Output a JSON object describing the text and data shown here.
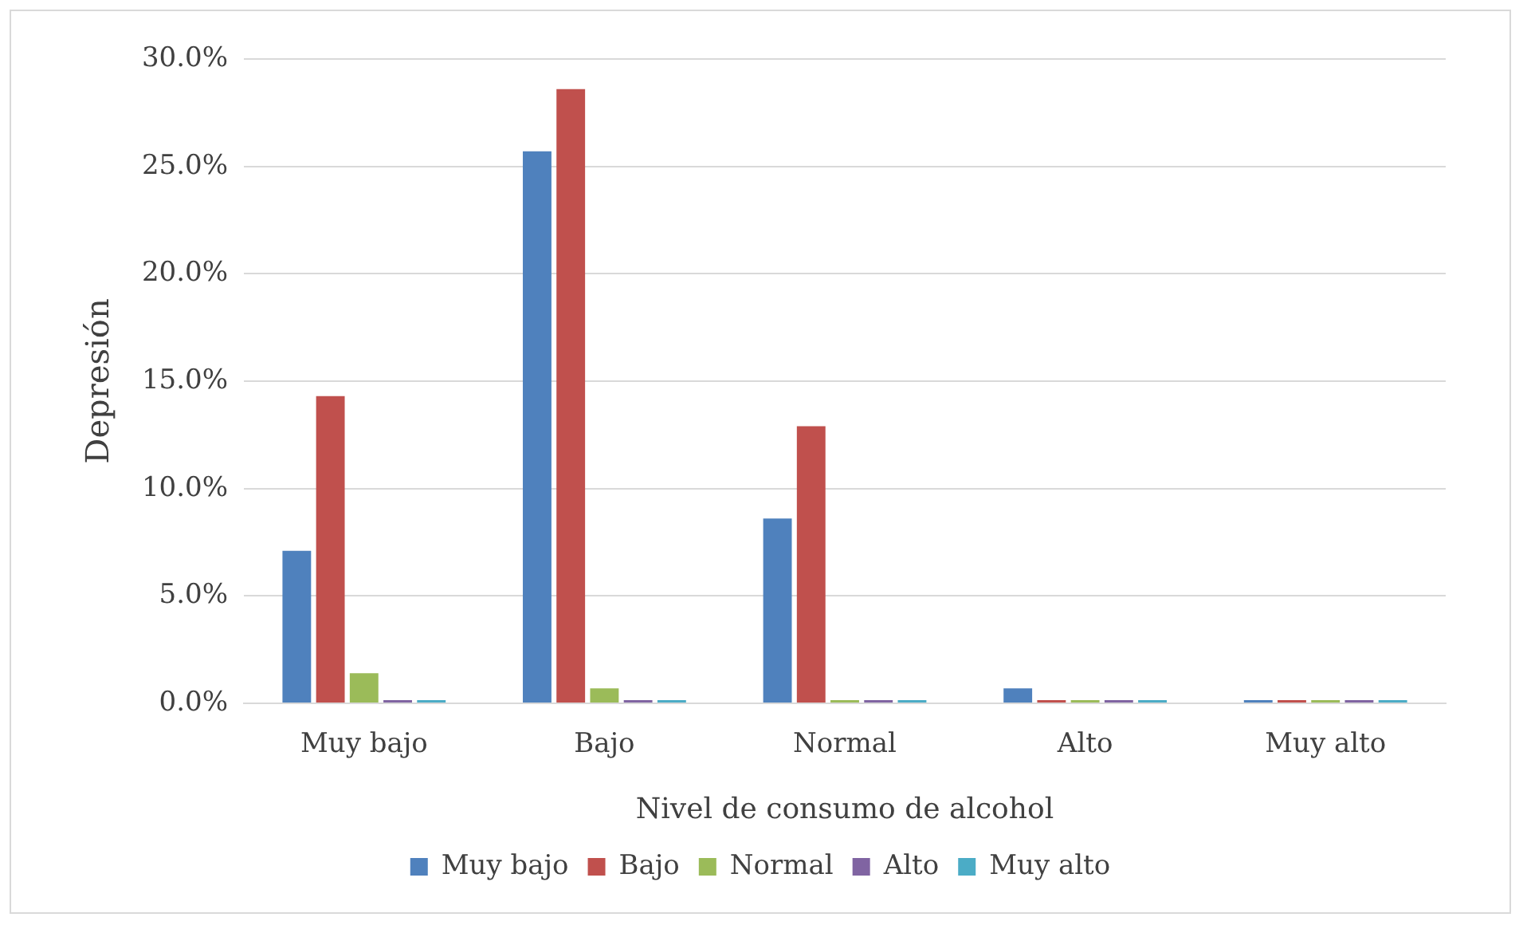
{
  "chart_data": {
    "type": "bar",
    "xlabel": "Nivel de consumo de alcohol",
    "ylabel": "Depresión",
    "categories": [
      "Muy bajo",
      "Bajo",
      "Normal",
      "Alto",
      "Muy alto"
    ],
    "series": [
      {
        "name": "Muy bajo",
        "color": "#4f81bd",
        "values": [
          7.1,
          25.7,
          8.6,
          0.7,
          0
        ]
      },
      {
        "name": "Bajo",
        "color": "#c0504d",
        "values": [
          14.3,
          28.6,
          12.9,
          0,
          0
        ]
      },
      {
        "name": "Normal",
        "color": "#9bbb59",
        "values": [
          1.4,
          0.7,
          0,
          0,
          0
        ]
      },
      {
        "name": "Alto",
        "color": "#8064a2",
        "values": [
          0,
          0,
          0,
          0,
          0
        ]
      },
      {
        "name": "Muy alto",
        "color": "#4bacc6",
        "values": [
          0,
          0,
          0,
          0,
          0
        ]
      }
    ],
    "ylim": [
      0,
      30
    ],
    "yticks": [
      {
        "value": 0,
        "label": "0.0%"
      },
      {
        "value": 5,
        "label": "5.0%"
      },
      {
        "value": 10,
        "label": "10.0%"
      },
      {
        "value": 15,
        "label": "15.0%"
      },
      {
        "value": 20,
        "label": "20.0%"
      },
      {
        "value": 25,
        "label": "25.0%"
      },
      {
        "value": 30,
        "label": "30.0%"
      }
    ],
    "grid": "y",
    "legend": "bottom"
  }
}
